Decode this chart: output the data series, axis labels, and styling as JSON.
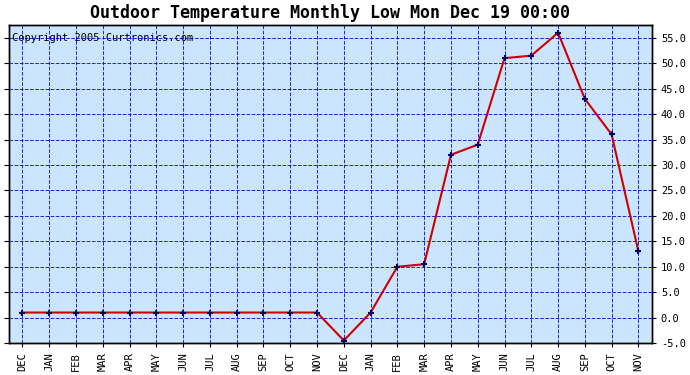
{
  "title": "Outdoor Temperature Monthly Low Mon Dec 19 00:00",
  "copyright": "Copyright 2005 Curtronics.com",
  "x_labels": [
    "DEC",
    "JAN",
    "FEB",
    "MAR",
    "APR",
    "MAY",
    "JUN",
    "JUL",
    "AUG",
    "SEP",
    "OCT",
    "NOV",
    "DEC",
    "JAN",
    "FEB",
    "MAR",
    "APR",
    "MAY",
    "JUN",
    "JUL",
    "AUG",
    "SEP",
    "OCT",
    "NOV"
  ],
  "y_values": [
    1.0,
    1.0,
    1.0,
    1.0,
    1.0,
    1.0,
    1.0,
    1.0,
    1.0,
    1.0,
    1.0,
    1.0,
    -4.5,
    1.0,
    10.0,
    10.5,
    32.0,
    34.0,
    51.0,
    51.5,
    56.0,
    43.0,
    36.0,
    13.0
  ],
  "y_min": -5.0,
  "y_max": 57.5,
  "y_ticks": [
    -5.0,
    0.0,
    5.0,
    10.0,
    15.0,
    20.0,
    25.0,
    30.0,
    35.0,
    40.0,
    45.0,
    50.0,
    55.0
  ],
  "line_color": "#cc0000",
  "marker_color": "#000066",
  "grid_color": "#0000cc",
  "plot_bg_color": "#cce5ff",
  "title_fontsize": 12,
  "tick_fontsize": 7.5,
  "copyright_fontsize": 7.5
}
